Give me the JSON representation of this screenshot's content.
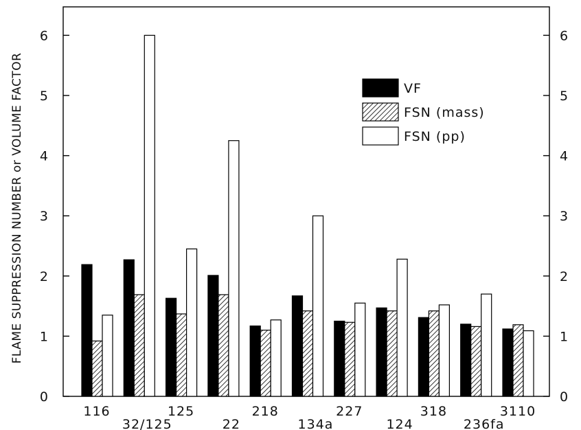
{
  "chart_data": {
    "type": "bar",
    "title": "",
    "xlabel": "",
    "ylabel": "FLAME SUPPRESSION NUMBER or VOLUME FACTOR",
    "ylim": [
      0,
      6.5
    ],
    "yticks": [
      0,
      1,
      2,
      3,
      4,
      5,
      6
    ],
    "y_axis_both_sides": true,
    "grid": false,
    "legend_position": "top-right",
    "categories": [
      "116",
      "32/125",
      "125",
      "22",
      "218",
      "134a",
      "227",
      "124",
      "318",
      "236fa",
      "3110"
    ],
    "series": [
      {
        "name": "VF",
        "fill": "solid",
        "color": "#000000",
        "values": [
          2.19,
          2.27,
          1.63,
          2.01,
          1.17,
          1.67,
          1.25,
          1.47,
          1.31,
          1.2,
          1.12
        ]
      },
      {
        "name": "FSN (mass)",
        "fill": "hatched",
        "color": "#000000",
        "values": [
          0.92,
          1.69,
          1.37,
          1.69,
          1.1,
          1.42,
          1.23,
          1.42,
          1.42,
          1.16,
          1.19
        ]
      },
      {
        "name": "FSN (pp)",
        "fill": "open",
        "color": "#ffffff",
        "values": [
          1.35,
          6.0,
          2.45,
          4.25,
          1.27,
          3.0,
          1.55,
          2.28,
          1.52,
          1.7,
          1.09
        ]
      }
    ]
  }
}
